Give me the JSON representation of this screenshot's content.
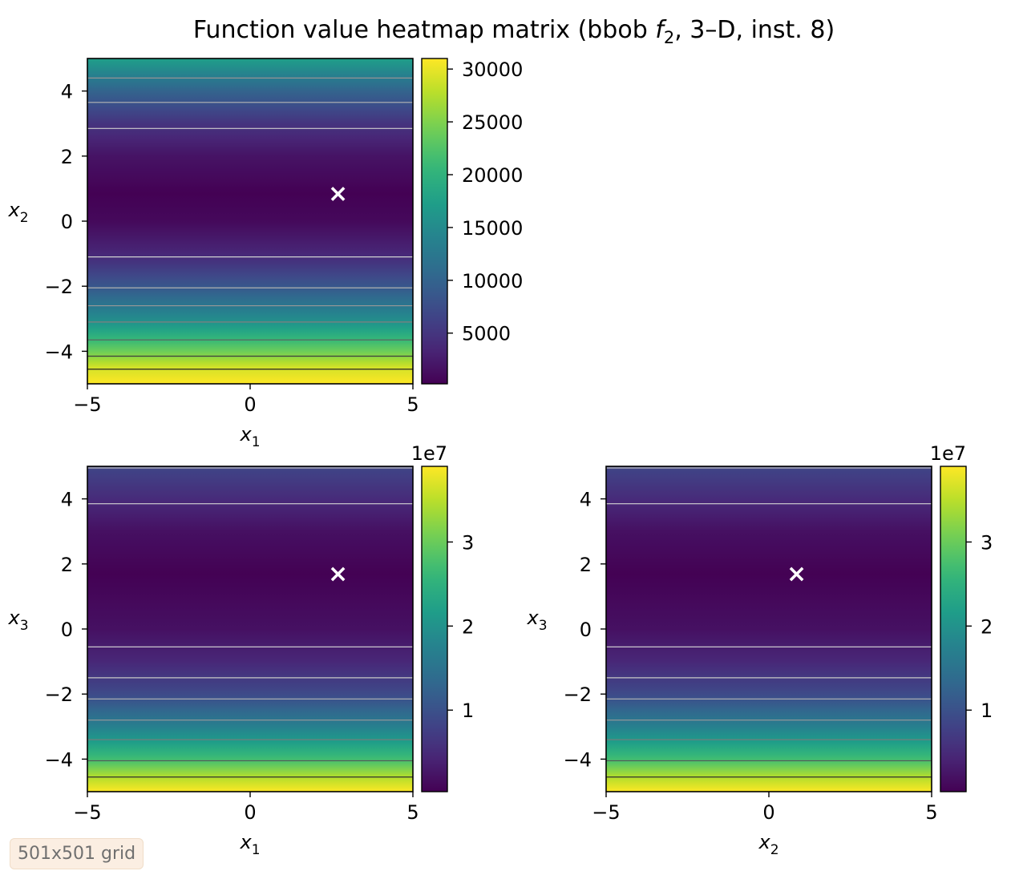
{
  "figure_title_main": "Function value heatmap matrix (bbob ",
  "figure_title_f": "f",
  "figure_title_sub": "2",
  "figure_title_rest": ", 3–D, inst. 8)",
  "grid_note": "501x501 grid",
  "colors": {
    "marker": "#ffffff",
    "viridis": [
      "#440154",
      "#482878",
      "#3e4989",
      "#31688e",
      "#26828e",
      "#1f9e89",
      "#35b779",
      "#6ece58",
      "#b5de2b",
      "#fde725"
    ]
  },
  "chart_data": [
    {
      "type": "heatmap",
      "panel": "x1-x2",
      "xlabel": "x",
      "xlabel_sub": "1",
      "ylabel": "x",
      "ylabel_sub": "2",
      "xlim": [
        -5,
        5
      ],
      "ylim": [
        -5,
        5
      ],
      "xticks": [
        -5,
        0,
        5
      ],
      "yticks": [
        -4,
        -2,
        0,
        2,
        4
      ],
      "marker": {
        "x": 2.7,
        "y": 0.85,
        "symbol": "×"
      },
      "value_profile_along_y": {
        "y": [
          -5,
          -4.5,
          -4,
          -3,
          -2,
          -1,
          0,
          0.85,
          2,
          3,
          4,
          5
        ],
        "value": [
          31000,
          29000,
          24000,
          15000,
          8500,
          3500,
          900,
          200,
          1800,
          4800,
          10000,
          17500
        ]
      },
      "contour_levels_y": [
        4.4,
        3.65,
        2.85,
        -1.1,
        -2.05,
        -2.6,
        -3.1,
        -3.65,
        -4.15,
        -4.55
      ],
      "colorbar": {
        "min": 200,
        "max": 31000,
        "ticks": [
          5000,
          10000,
          15000,
          20000,
          25000,
          30000
        ],
        "tick_labels": [
          "5000",
          "10000",
          "15000",
          "20000",
          "25000",
          "30000"
        ],
        "offset_label": ""
      }
    },
    {
      "type": "heatmap",
      "panel": "x1-x3",
      "xlabel": "x",
      "xlabel_sub": "1",
      "ylabel": "x",
      "ylabel_sub": "3",
      "xlim": [
        -5,
        5
      ],
      "ylim": [
        -5,
        5
      ],
      "xticks": [
        -5,
        0,
        5
      ],
      "yticks": [
        -4,
        -2,
        0,
        2,
        4
      ],
      "marker": {
        "x": 2.7,
        "y": 1.7,
        "symbol": "×"
      },
      "value_profile_along_y": {
        "y": [
          -5,
          -4.5,
          -4,
          -3,
          -2,
          -1,
          0,
          1.7,
          3,
          4,
          5
        ],
        "value": [
          39000000,
          34000000,
          27000000,
          17000000,
          9000000,
          4500000,
          2000000,
          300000,
          2000000,
          5000000,
          8500000
        ]
      },
      "contour_levels_y": [
        4.95,
        3.85,
        -0.55,
        -1.5,
        -2.15,
        -2.8,
        -3.4,
        -4.05,
        -4.55
      ],
      "colorbar": {
        "min": 300000,
        "max": 39000000,
        "ticks": [
          10000000,
          20000000,
          30000000
        ],
        "tick_labels": [
          "1",
          "2",
          "3"
        ],
        "offset_label": "1e7"
      }
    },
    {
      "type": "heatmap",
      "panel": "x2-x3",
      "xlabel": "x",
      "xlabel_sub": "2",
      "ylabel": "x",
      "ylabel_sub": "3",
      "xlim": [
        -5,
        5
      ],
      "ylim": [
        -5,
        5
      ],
      "xticks": [
        -5,
        0,
        5
      ],
      "yticks": [
        -4,
        -2,
        0,
        2,
        4
      ],
      "marker": {
        "x": 0.85,
        "y": 1.7,
        "symbol": "×"
      },
      "value_profile_along_y": {
        "y": [
          -5,
          -4.5,
          -4,
          -3,
          -2,
          -1,
          0,
          1.7,
          3,
          4,
          5
        ],
        "value": [
          39000000,
          34000000,
          27000000,
          17000000,
          9000000,
          4500000,
          2000000,
          300000,
          2000000,
          5000000,
          8500000
        ]
      },
      "contour_levels_y": [
        4.95,
        3.85,
        -0.55,
        -1.5,
        -2.15,
        -2.8,
        -3.4,
        -4.05,
        -4.55
      ],
      "colorbar": {
        "min": 300000,
        "max": 39000000,
        "ticks": [
          10000000,
          20000000,
          30000000
        ],
        "tick_labels": [
          "1",
          "2",
          "3"
        ],
        "offset_label": "1e7"
      }
    }
  ]
}
